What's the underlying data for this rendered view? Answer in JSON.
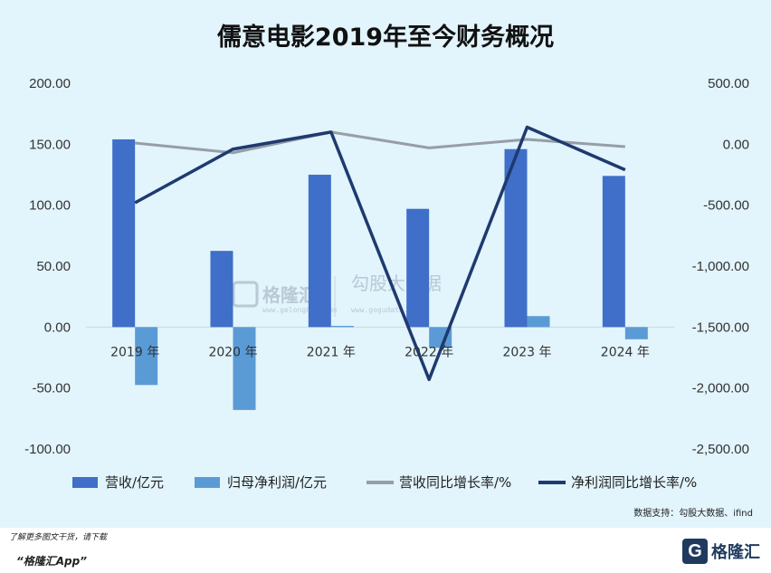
{
  "chart_data": {
    "type": "bar",
    "title": "儒意电影2019年至今财务概况",
    "categories": [
      "2019 年",
      "2020 年",
      "2021 年",
      "2022 年",
      "2023 年",
      "2024 年"
    ],
    "y_left": {
      "ylim": [
        -100,
        200
      ],
      "ticks": [
        "200.00",
        "150.00",
        "100.00",
        "50.00",
        "0.00",
        "-50.00",
        "-100.00"
      ]
    },
    "y_right": {
      "ylim": [
        -2500,
        500
      ],
      "ticks": [
        "500.00",
        "0.00",
        "-500.00",
        "-1,000.00",
        "-1,500.00",
        "-2,000.00",
        "-2,500.00"
      ]
    },
    "series": [
      {
        "name": "营收/亿元",
        "type": "bar",
        "axis": "left",
        "color": "#3f6fc9",
        "values": [
          154,
          62.5,
          125,
          97,
          146,
          124
        ]
      },
      {
        "name": "归母净利润/亿元",
        "type": "bar",
        "axis": "left",
        "color": "#5b9bd5",
        "values": [
          -47.5,
          -68,
          1,
          -17,
          9,
          -10
        ]
      },
      {
        "name": "营收同比增长率/%",
        "type": "line",
        "axis": "right",
        "color": "#969ea6",
        "values": [
          10,
          -70,
          100,
          -30,
          40,
          -20
        ]
      },
      {
        "name": "净利润同比增长率/%",
        "type": "line",
        "axis": "right",
        "color": "#1f3a6e",
        "values": [
          -480,
          -40,
          100,
          -1930,
          140,
          -210
        ]
      }
    ],
    "legend_position": "bottom",
    "grid": false
  },
  "watermark": {
    "brand": "格隆汇",
    "site": "www.gelonghui.com",
    "right_label": "勾股大数据",
    "right_site": "www.gogudata.com"
  },
  "source_text": "数据支持：勾股大数据、ifind",
  "footer": {
    "note": "了解更多图文干货，请下载",
    "app": "“格隆汇App”",
    "logo_mark": "G",
    "logo_text": "格隆汇"
  },
  "colors": {
    "background": "#e2f4fc"
  }
}
